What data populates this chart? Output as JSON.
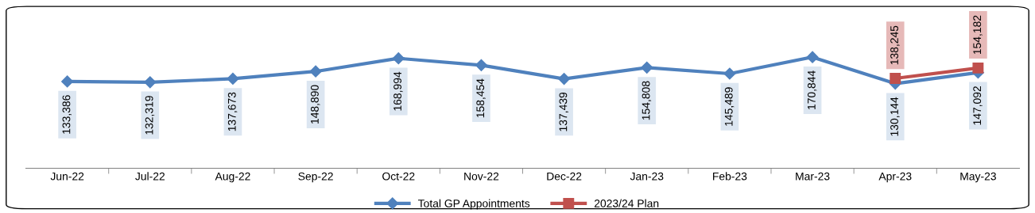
{
  "chart_data": {
    "type": "line",
    "categories": [
      "Jun-22",
      "Jul-22",
      "Aug-22",
      "Sep-22",
      "Oct-22",
      "Nov-22",
      "Dec-22",
      "Jan-23",
      "Feb-23",
      "Mar-23",
      "Apr-23",
      "May-23"
    ],
    "series": [
      {
        "name": "Total GP Appointments",
        "color": "#4f81bd",
        "marker": "diamond",
        "values": [
          133386,
          132319,
          137673,
          148890,
          168994,
          158454,
          137439,
          154808,
          145489,
          170844,
          130144,
          147092
        ],
        "value_labels": [
          "133,386",
          "132,319",
          "137,673",
          "148,890",
          "168,994",
          "158,454",
          "137,439",
          "154,808",
          "145,489",
          "170,844",
          "130,144",
          "147,092"
        ]
      },
      {
        "name": "2023/24 Plan",
        "color": "#c0504d",
        "marker": "square",
        "values": [
          null,
          null,
          null,
          null,
          null,
          null,
          null,
          null,
          null,
          null,
          138245,
          154182
        ],
        "value_labels": [
          null,
          null,
          null,
          null,
          null,
          null,
          null,
          null,
          null,
          null,
          "138,245",
          "154,182"
        ]
      }
    ],
    "legend": "bottom",
    "grid": false
  }
}
